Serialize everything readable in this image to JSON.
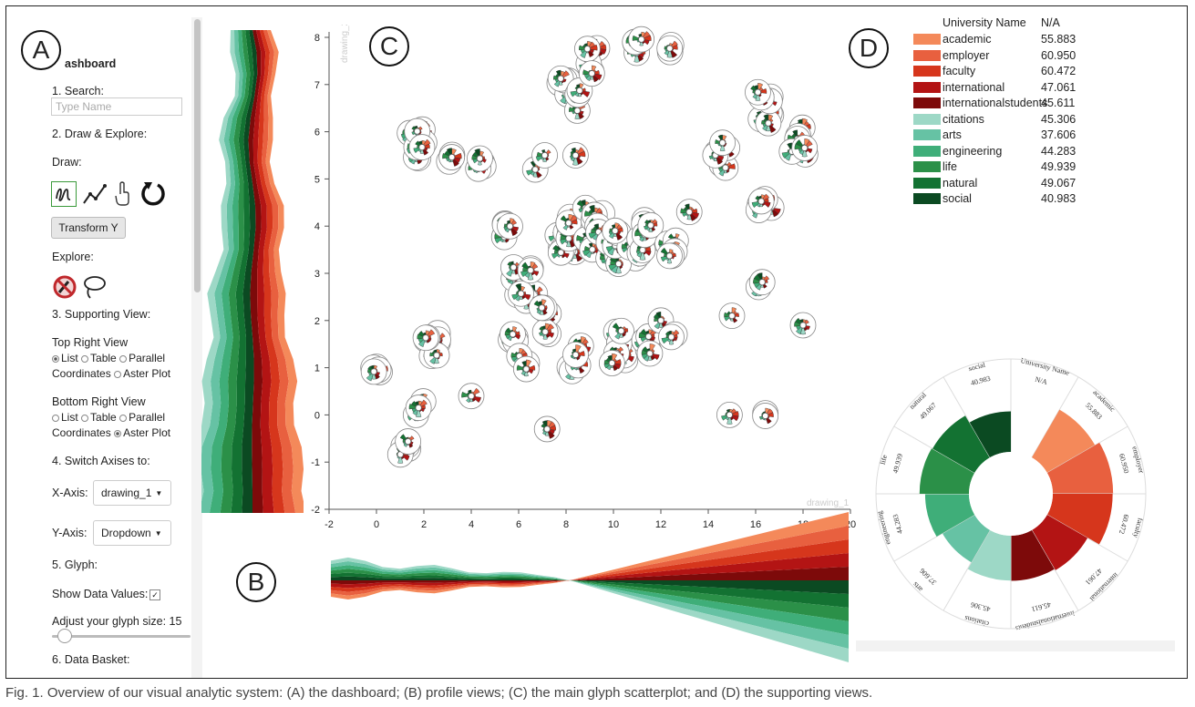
{
  "labels": {
    "a": "A",
    "b": "B",
    "c": "C",
    "d": "D"
  },
  "sidebar": {
    "title": "ashboard",
    "search_label": "1. Search:",
    "search_placeholder": "Type Name",
    "draw_explore_label": "2. Draw & Explore:",
    "draw_label": "Draw:",
    "transform_button": "Transform Y",
    "explore_label": "Explore:",
    "supporting_label": "3. Supporting View:",
    "top_right_label": "Top Right View",
    "top_right_options_line1": [
      "List",
      "Table",
      "Parallel"
    ],
    "top_right_options_line2": [
      "Coordinates",
      "Aster Plot"
    ],
    "top_right_selected": "List",
    "bottom_right_label": "Bottom Right View",
    "bottom_right_options_line1": [
      "List",
      "Table",
      "Parallel"
    ],
    "bottom_right_options_line2": [
      "Coordinates",
      "Aster Plot"
    ],
    "bottom_right_selected": "Aster Plot",
    "switch_label": "4. Switch Axises to:",
    "x_axis_label": "X-Axis:",
    "x_axis_value": "drawing_1",
    "y_axis_label": "Y-Axis:",
    "y_axis_value": "Dropdown",
    "glyph_label": "5. Glyph:",
    "show_values_label": "Show Data Values:",
    "show_values_checked": true,
    "glyph_size_label": "Adjust your glyph size: 15",
    "glyph_size": 15,
    "basket_label": "6. Data Basket:"
  },
  "scatter": {
    "x_axis_title": "drawing_1",
    "y_axis_title": "drawing_2",
    "x_ticks": [
      "-2",
      "0",
      "2",
      "4",
      "6",
      "8",
      "10",
      "12",
      "14",
      "16",
      "18",
      "20"
    ],
    "y_ticks": [
      "8",
      "7",
      "6",
      "5",
      "4",
      "3",
      "2",
      "1",
      "0",
      "-1",
      "-2"
    ]
  },
  "legend": {
    "header_name": "University Name",
    "header_value": "N/A",
    "items": [
      {
        "name": "academic",
        "value": "55.883",
        "color": "#f4895a"
      },
      {
        "name": "employer",
        "value": "60.950",
        "color": "#e8603f"
      },
      {
        "name": "faculty",
        "value": "60.472",
        "color": "#d6361c"
      },
      {
        "name": "international",
        "value": "47.061",
        "color": "#b31414"
      },
      {
        "name": "internationalstudents",
        "value": "45.611",
        "color": "#7d0a0a"
      },
      {
        "name": "citations",
        "value": "45.306",
        "color": "#9dd8c6"
      },
      {
        "name": "arts",
        "value": "37.606",
        "color": "#66c2a4"
      },
      {
        "name": "engineering",
        "value": "44.283",
        "color": "#3fae79"
      },
      {
        "name": "life",
        "value": "49.939",
        "color": "#2b9048"
      },
      {
        "name": "natural",
        "value": "49.067",
        "color": "#137232"
      },
      {
        "name": "social",
        "value": "40.983",
        "color": "#0b4a22"
      }
    ]
  },
  "aster": {
    "top_name": "University Name",
    "top_value": "N/A"
  },
  "caption": "Fig. 1. Overview of our visual analytic system: (A) the dashboard; (B) profile views; (C) the main glyph scatterplot; and (D) the supporting views."
}
